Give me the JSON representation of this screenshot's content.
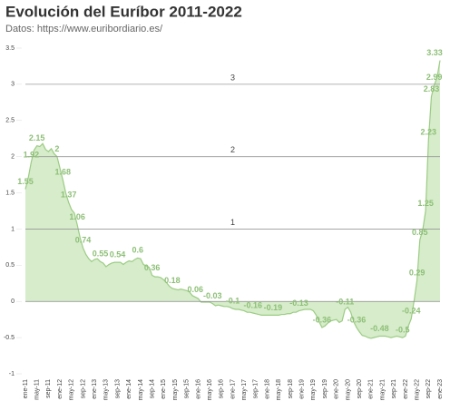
{
  "chart_data": {
    "type": "area",
    "title": "Evolución del Euríbor 2011-2022",
    "subtitle": "Datos: https://www.euribordiario.es/",
    "categories": [
      "ene-11",
      null,
      null,
      null,
      "may-11",
      null,
      null,
      null,
      "sep-11",
      null,
      null,
      null,
      "ene-12",
      null,
      null,
      null,
      "may-12",
      null,
      null,
      null,
      "sep-12",
      null,
      null,
      null,
      "ene-13",
      null,
      null,
      null,
      "may-13",
      null,
      null,
      null,
      "sep-13",
      null,
      null,
      null,
      "ene-14",
      null,
      null,
      null,
      "may-14",
      null,
      null,
      null,
      "sep-14",
      null,
      null,
      null,
      "ene-15",
      null,
      null,
      null,
      "may-15",
      null,
      null,
      null,
      "sep-15",
      null,
      null,
      null,
      "ene-16",
      null,
      null,
      null,
      "may-16",
      null,
      null,
      null,
      "sep-16",
      null,
      null,
      null,
      "ene-17",
      null,
      null,
      null,
      "may-17",
      null,
      null,
      null,
      "sep-17",
      null,
      null,
      null,
      "ene-18",
      null,
      null,
      null,
      "may-18",
      null,
      null,
      null,
      "sep-18",
      null,
      null,
      null,
      "ene-19",
      null,
      null,
      null,
      "may-19",
      null,
      null,
      null,
      "sep-19",
      null,
      null,
      null,
      "ene-20",
      null,
      null,
      null,
      "may-20",
      null,
      null,
      null,
      "sep-20",
      null,
      null,
      null,
      "ene-21",
      null,
      null,
      null,
      "may-21",
      null,
      null,
      null,
      "sep-21",
      null,
      null,
      null,
      "ene-22",
      null,
      null,
      null,
      "may-22",
      null,
      null,
      null,
      "sep-22",
      null,
      null,
      null,
      "ene-23"
    ],
    "values": [
      1.55,
      1.71,
      1.92,
      2.09,
      2.15,
      2.14,
      2.18,
      2.1,
      2.07,
      2.11,
      2.04,
      2,
      1.84,
      1.68,
      1.5,
      1.37,
      1.27,
      1.22,
      1.06,
      0.88,
      0.74,
      0.65,
      0.59,
      0.55,
      0.58,
      0.59,
      0.55,
      0.53,
      0.48,
      0.51,
      0.53,
      0.54,
      0.54,
      0.54,
      0.51,
      0.54,
      0.56,
      0.55,
      0.58,
      0.6,
      0.59,
      0.51,
      0.49,
      0.47,
      0.36,
      0.34,
      0.34,
      0.33,
      0.3,
      0.26,
      0.21,
      0.18,
      0.17,
      0.16,
      0.17,
      0.16,
      0.15,
      0.13,
      0.08,
      0.06,
      0.04,
      -0.01,
      -0.01,
      -0.01,
      -0.01,
      -0.03,
      -0.06,
      -0.05,
      -0.06,
      -0.07,
      -0.07,
      -0.08,
      -0.1,
      -0.11,
      -0.11,
      -0.12,
      -0.13,
      -0.15,
      -0.15,
      -0.16,
      -0.17,
      -0.18,
      -0.19,
      -0.19,
      -0.19,
      -0.19,
      -0.19,
      -0.19,
      -0.19,
      -0.18,
      -0.18,
      -0.17,
      -0.17,
      -0.15,
      -0.15,
      -0.13,
      -0.12,
      -0.11,
      -0.11,
      -0.11,
      -0.13,
      -0.19,
      -0.28,
      -0.36,
      -0.34,
      -0.3,
      -0.27,
      -0.26,
      -0.25,
      -0.29,
      -0.27,
      -0.11,
      -0.08,
      -0.15,
      -0.28,
      -0.36,
      -0.42,
      -0.47,
      -0.48,
      -0.5,
      -0.51,
      -0.5,
      -0.49,
      -0.48,
      -0.48,
      -0.48,
      -0.49,
      -0.5,
      -0.49,
      -0.48,
      -0.49,
      -0.5,
      -0.48,
      -0.34,
      -0.24,
      0.01,
      0.29,
      0.85,
      0.99,
      1.25,
      2.23,
      2.83,
      2.99,
      3.1,
      3.33
    ],
    "value_labels": [
      "1.55",
      null,
      "1.92",
      null,
      "2.15",
      null,
      null,
      null,
      null,
      null,
      null,
      "2",
      null,
      "1.68",
      null,
      "1.37",
      null,
      null,
      "1.06",
      null,
      "0.74",
      null,
      null,
      null,
      null,
      null,
      "0.55",
      null,
      null,
      null,
      null,
      null,
      "0.54",
      null,
      null,
      null,
      null,
      null,
      null,
      "0.6",
      null,
      null,
      null,
      null,
      "0.36",
      null,
      null,
      null,
      null,
      null,
      null,
      "0.18",
      null,
      null,
      null,
      null,
      null,
      null,
      null,
      "0.06",
      null,
      null,
      null,
      null,
      null,
      "-0.03",
      null,
      null,
      null,
      null,
      null,
      null,
      "-0.1",
      null,
      null,
      null,
      null,
      null,
      null,
      "-0.16",
      null,
      null,
      null,
      null,
      null,
      null,
      "-0.19",
      null,
      null,
      null,
      null,
      null,
      null,
      null,
      null,
      "-0.13",
      null,
      null,
      null,
      null,
      null,
      null,
      null,
      "-0.36",
      null,
      null,
      null,
      null,
      null,
      null,
      null,
      "-0.11",
      null,
      null,
      null,
      "-0.36",
      null,
      null,
      null,
      null,
      null,
      null,
      null,
      "-0.48",
      null,
      null,
      null,
      null,
      null,
      null,
      null,
      "-0.5",
      null,
      null,
      "-0.24",
      null,
      "0.29",
      "0.85",
      null,
      "1.25",
      "2.23",
      "2.83",
      "2.99",
      null,
      "3.33"
    ],
    "color": "#9ccc84",
    "fill": "#d6ecca",
    "ylim": [
      -1,
      3.5
    ],
    "yticks": [
      -1,
      -0.5,
      0,
      0.5,
      1,
      1.5,
      2,
      2.5,
      3,
      3.5
    ],
    "reference_lines": [
      1,
      2,
      3
    ]
  }
}
